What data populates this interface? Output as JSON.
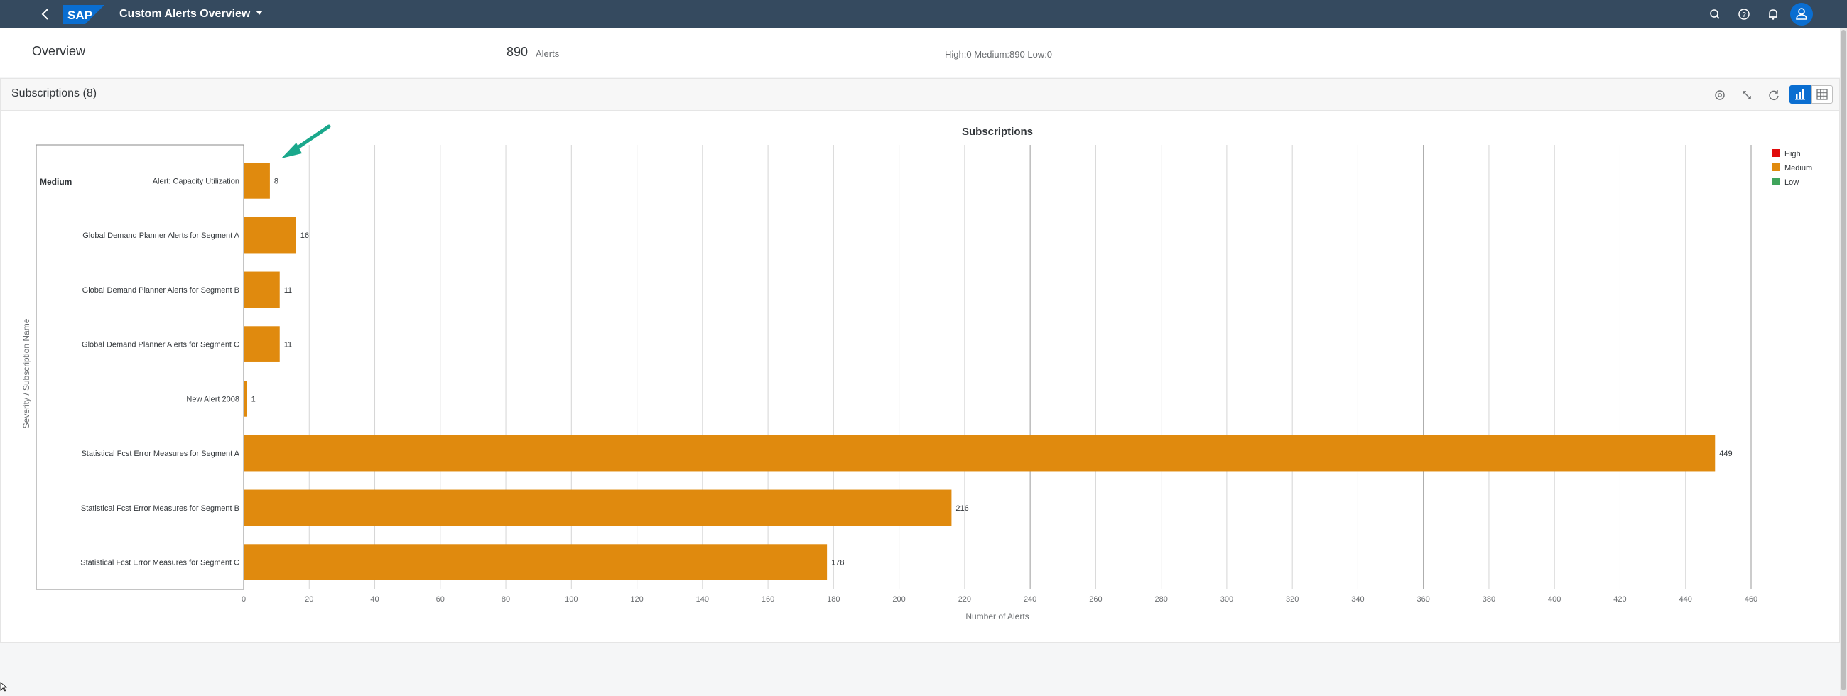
{
  "shell": {
    "app_title": "Custom Alerts Overview",
    "logo_text": "SAP",
    "icons": [
      "back-icon",
      "search-icon",
      "help-icon",
      "notifications-icon",
      "user-icon"
    ]
  },
  "overview": {
    "title": "Overview",
    "alert_count": "890",
    "alert_count_label": "Alerts",
    "severity_breakdown": "High:0 Medium:890 Low:0"
  },
  "card": {
    "title": "Subscriptions (8)",
    "toolbar_icons": [
      "settings-icon",
      "fullscreen-icon",
      "refresh-icon",
      "chart-view-icon",
      "table-view-icon"
    ]
  },
  "colors": {
    "shell": "#354a5f",
    "accent": "#0a6ed1",
    "high": "#e00c0c",
    "medium": "#e08a0e",
    "low": "#3fa45b",
    "annotation_arrow": "#1aa88c"
  },
  "chart_data": {
    "type": "bar",
    "orientation": "horizontal",
    "title": "Subscriptions",
    "xlabel": "Number of Alerts",
    "ylabel": "Severity / Subscription Name",
    "group_label": "Medium",
    "categories": [
      "Alert: Capacity Utilization",
      "Global Demand Planner Alerts for Segment A",
      "Global Demand Planner Alerts for Segment B",
      "Global Demand Planner Alerts for Segment C",
      "New Alert 2008",
      "Statistical Fcst Error Measures for Segment A",
      "Statistical Fcst Error Measures for Segment B",
      "Statistical Fcst Error Measures for Segment C"
    ],
    "values": [
      8,
      16,
      11,
      11,
      1,
      449,
      216,
      178
    ],
    "xlim": [
      0,
      460
    ],
    "xticks": [
      0,
      20,
      40,
      60,
      80,
      100,
      120,
      140,
      160,
      180,
      200,
      220,
      240,
      260,
      280,
      300,
      320,
      340,
      360,
      380,
      400,
      420,
      440,
      460
    ],
    "grid": true,
    "legend": {
      "position": "top-right",
      "items": [
        {
          "label": "High",
          "color": "#e00c0c"
        },
        {
          "label": "Medium",
          "color": "#e08a0e"
        },
        {
          "label": "Low",
          "color": "#3fa45b"
        }
      ]
    },
    "bar_color": "#e08a0e"
  }
}
